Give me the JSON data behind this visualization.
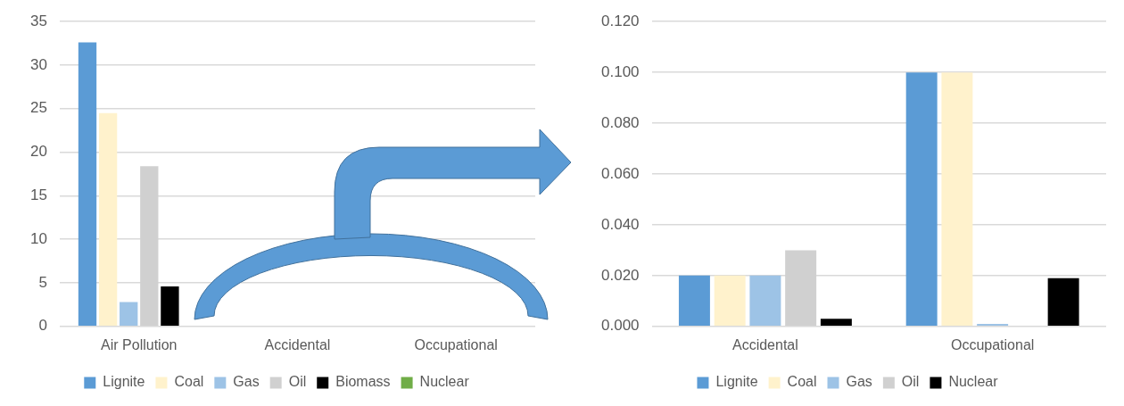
{
  "chart_data": [
    {
      "type": "bar",
      "categories": [
        "Air Pollution",
        "Accidental",
        "Occupational"
      ],
      "series": [
        {
          "name": "Lignite",
          "color": "#5b9bd5",
          "values": [
            32.6,
            0,
            0
          ]
        },
        {
          "name": "Coal",
          "color": "#fff2cc",
          "values": [
            24.5,
            0,
            0
          ]
        },
        {
          "name": "Gas",
          "color": "#9dc3e6",
          "values": [
            2.8,
            0,
            0
          ]
        },
        {
          "name": "Oil",
          "color": "#d0d0d0",
          "values": [
            18.4,
            0,
            null
          ]
        },
        {
          "name": "Biomass",
          "color": "#000000",
          "values": [
            4.6,
            null,
            null
          ]
        },
        {
          "name": "Nuclear",
          "color": "#70ad47",
          "values": [
            0,
            0,
            0
          ]
        }
      ],
      "ylim": [
        0,
        35
      ],
      "yticks": [
        0,
        5,
        10,
        15,
        20,
        25,
        30,
        35
      ],
      "grid": "y",
      "legend": "bottom"
    },
    {
      "type": "bar",
      "categories": [
        "Accidental",
        "Occupational"
      ],
      "series": [
        {
          "name": "Lignite",
          "color": "#5b9bd5",
          "values": [
            0.02,
            0.1
          ]
        },
        {
          "name": "Coal",
          "color": "#fff2cc",
          "values": [
            0.02,
            0.1
          ]
        },
        {
          "name": "Gas",
          "color": "#9dc3e6",
          "values": [
            0.02,
            0.001
          ]
        },
        {
          "name": "Oil",
          "color": "#d0d0d0",
          "values": [
            0.03,
            null
          ]
        },
        {
          "name": "Nuclear",
          "color": "#000000",
          "values": [
            0.003,
            0.019
          ]
        }
      ],
      "ylim": [
        0,
        0.12
      ],
      "yticks": [
        {
          "value": 0,
          "label": "0.000"
        },
        {
          "value": 0.02,
          "label": "0.020"
        },
        {
          "value": 0.04,
          "label": "0.040"
        },
        {
          "value": 0.06,
          "label": "0.060"
        },
        {
          "value": 0.08,
          "label": "0.080"
        },
        {
          "value": 0.1,
          "label": "0.100"
        },
        {
          "value": 0.12,
          "label": "0.120"
        }
      ],
      "grid": "y",
      "legend": "bottom"
    }
  ]
}
